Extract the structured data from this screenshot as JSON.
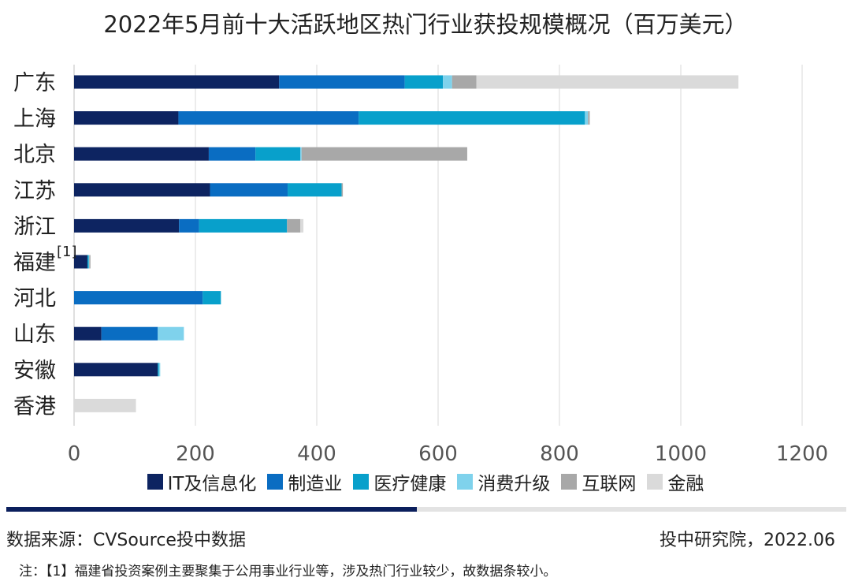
{
  "chart_data": {
    "type": "bar",
    "orientation": "horizontal",
    "stacked": true,
    "title": "2022年5月前十大活跃地区热门行业获投规模概况（百万美元）",
    "categories": [
      "广东",
      "上海",
      "北京",
      "江苏",
      "浙江",
      "福建",
      "河北",
      "山东",
      "安徽",
      "香港"
    ],
    "annotation": {
      "text": "[1]",
      "category": "福建"
    },
    "series": [
      {
        "name": "IT及信息化",
        "color": "#0d2461",
        "values": [
          338,
          172,
          222,
          224,
          173,
          22,
          0,
          45,
          138,
          0
        ]
      },
      {
        "name": "制造业",
        "color": "#0a6dc2",
        "values": [
          207,
          297,
          77,
          128,
          33,
          0,
          212,
          93,
          0,
          0
        ]
      },
      {
        "name": "医疗健康",
        "color": "#08a0cb",
        "values": [
          63,
          373,
          74,
          89,
          145,
          2,
          30,
          0,
          2,
          0
        ]
      },
      {
        "name": "消费升级",
        "color": "#7fd2ec",
        "values": [
          15,
          5,
          2,
          0,
          0,
          1,
          0,
          43,
          2,
          0
        ]
      },
      {
        "name": "互联网",
        "color": "#a8a8a8",
        "values": [
          40,
          3,
          273,
          2,
          22,
          2,
          0,
          0,
          0,
          0
        ]
      },
      {
        "name": "金融",
        "color": "#dadada",
        "values": [
          432,
          0,
          0,
          0,
          5,
          0,
          0,
          0,
          0,
          102
        ]
      }
    ],
    "xlim": [
      0,
      1200
    ],
    "xticks": [
      0,
      200,
      400,
      600,
      800,
      1000,
      1200
    ],
    "grid": true,
    "legend": "bottom"
  },
  "footer": {
    "source": "数据来源：CVSource投中数据",
    "org_date": "投中研究院，2022.06",
    "note": "注：【1】福建省投资案例主要聚集于公用事业行业等，涉及热门行业较少，故数据条较小。"
  }
}
